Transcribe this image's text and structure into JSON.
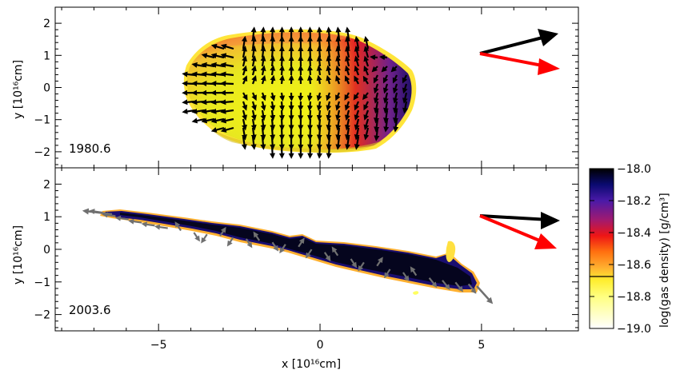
{
  "chart_data": [
    {
      "type": "scatter",
      "panel": "top",
      "epoch_label": "1980.6",
      "ylabel": "y [10¹⁶cm]",
      "xlim": [
        -8.2,
        8.0
      ],
      "ylim": [
        -2.5,
        2.5
      ],
      "yticks": [
        "2",
        "1",
        "0",
        "−1",
        "−2"
      ],
      "ytick_values": [
        2,
        1,
        0,
        -1,
        -2
      ],
      "description": "Ellipsoidal gas clump colored by log density with black velocity vectors; arrows at right indicate direction reference",
      "clump_extent_x": [
        -4.5,
        3.2
      ],
      "clump_extent_y": [
        -2.0,
        1.8
      ],
      "reference_arrows": [
        {
          "color": "#000000",
          "direction_deg": 20
        },
        {
          "color": "#ff0000",
          "direction_deg": -12
        }
      ]
    },
    {
      "type": "scatter",
      "panel": "bottom",
      "epoch_label": "2003.6",
      "xlabel": "x [10¹⁶cm]",
      "ylabel": "y [10¹⁶cm]",
      "xlim": [
        -8.2,
        8.0
      ],
      "ylim": [
        -2.5,
        2.5
      ],
      "xticks": [
        "−5",
        "0",
        "5"
      ],
      "xtick_values": [
        -5,
        0,
        5
      ],
      "yticks": [
        "2",
        "1",
        "0",
        "−1",
        "−2"
      ],
      "ytick_values": [
        2,
        1,
        0,
        -1,
        -2
      ],
      "description": "Stretched gas filament from (-7.2,1.15) to (5.4,-1.6) colored by log density with grey velocity vectors",
      "reference_arrows": [
        {
          "color": "#000000",
          "direction_deg": -4
        },
        {
          "color": "#ff0000",
          "direction_deg": -28
        }
      ]
    }
  ],
  "colorbar": {
    "label": "log(gas density) [g/cm³]",
    "range": [
      -19.0,
      -18.0
    ],
    "ticks": [
      "−18.0",
      "−18.2",
      "−18.4",
      "−18.6",
      "−18.8",
      "−19.0"
    ],
    "tick_values": [
      -18.0,
      -18.2,
      -18.4,
      -18.6,
      -18.8,
      -19.0
    ],
    "colors": [
      "#000000",
      "#1a0a6e",
      "#4b1aa0",
      "#9a1a6a",
      "#e0101a",
      "#ff5a00",
      "#ffa030",
      "#ffd040",
      "#ffff40",
      "#ffff90",
      "#ffffff"
    ]
  }
}
